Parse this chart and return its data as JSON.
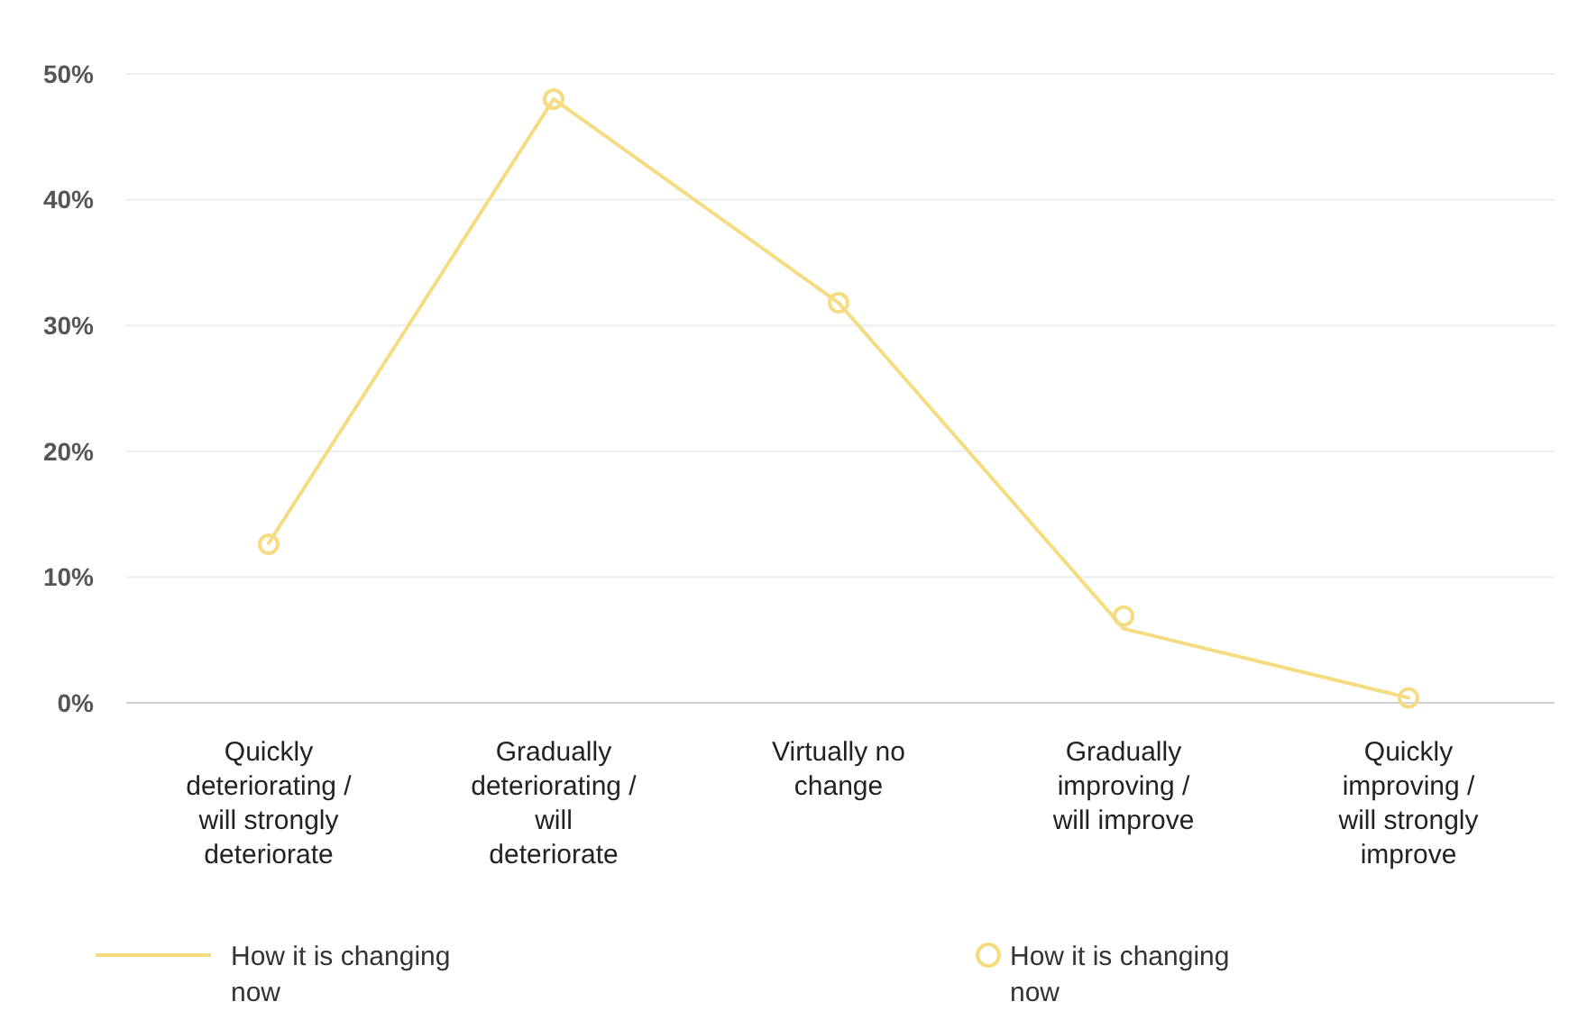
{
  "chart_data": {
    "type": "line",
    "categories": [
      "Quickly deteriorating / will strongly deteriorate",
      "Gradually deteriorating / will deteriorate",
      "Virtually no change",
      "Gradually improving / will improve",
      "Quickly improving / will strongly improve"
    ],
    "series": [
      {
        "name": "How it is changing now",
        "marker": "none",
        "color": "#f5dc82",
        "values": [
          12.7,
          48.0,
          31.8,
          5.9,
          0.4
        ]
      },
      {
        "name": "How it is changing now",
        "type": "scatter",
        "marker": "circle",
        "color": "#f5dc82",
        "values": [
          12.6,
          48.0,
          31.8,
          6.9,
          0.4
        ]
      }
    ],
    "ylim": [
      0,
      50
    ],
    "yticks": [
      {
        "value": 0,
        "label": "0%"
      },
      {
        "value": 10,
        "label": "10%"
      },
      {
        "value": 20,
        "label": "20%"
      },
      {
        "value": 30,
        "label": "30%"
      },
      {
        "value": 40,
        "label": "40%"
      },
      {
        "value": 50,
        "label": "50%"
      }
    ],
    "grid": "y",
    "legend": "bottom"
  }
}
